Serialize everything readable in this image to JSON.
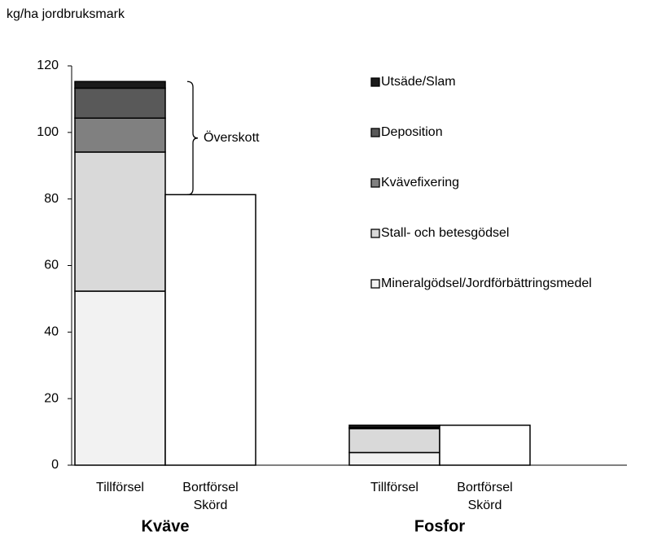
{
  "chart_data": {
    "type": "stacked_bar",
    "y_axis_label": "kg/ha jordbruksmark",
    "annotation": "Överskott",
    "groups": [
      "Kväve",
      "Fosfor"
    ],
    "categories": [
      "Tillförsel",
      "Bortförsel Skörd",
      "Tillförsel",
      "Bortförsel Skörd"
    ],
    "series": [
      {
        "name": "Mineralgödsel/Jordförbättringsmedel",
        "color": "#f2f2f2",
        "values": [
          52.3,
          null,
          3.8,
          null
        ]
      },
      {
        "name": "Stall- och betesgödsel",
        "color": "#d9d9d9",
        "values": [
          41.8,
          null,
          7.2,
          null
        ]
      },
      {
        "name": "Kvävefixering",
        "color": "#808080",
        "values": [
          10.2,
          null,
          0,
          null
        ]
      },
      {
        "name": "Deposition",
        "color": "#595959",
        "values": [
          9,
          null,
          0.3,
          null
        ]
      },
      {
        "name": "Utsäde/Slam",
        "color": "#1a1a1a",
        "values": [
          2,
          null,
          0.7,
          null
        ]
      },
      {
        "color": "#ffffff",
        "values": [
          null,
          81.3,
          null,
          12
        ]
      }
    ],
    "ylim": [
      0,
      120
    ],
    "yticks": [
      0,
      20,
      40,
      60,
      80,
      100,
      120
    ]
  }
}
